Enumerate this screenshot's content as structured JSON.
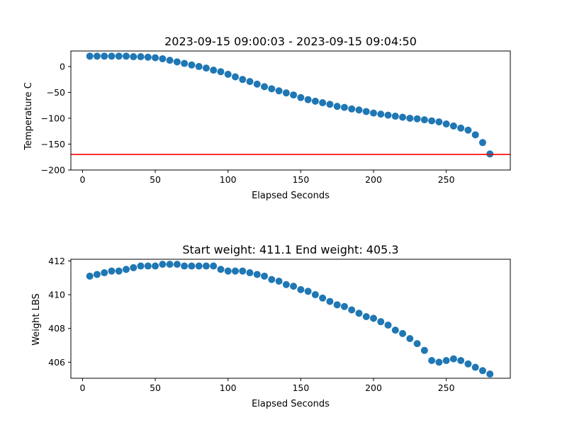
{
  "chart_data": [
    {
      "type": "scatter",
      "title": "2023-09-15 09:00:03 - 2023-09-15 09:04:50",
      "xlabel": "Elapsed Seconds",
      "ylabel": "Temperature C",
      "xlim": [
        -8,
        294
      ],
      "ylim": [
        -200,
        30
      ],
      "xticks": [
        0,
        50,
        100,
        150,
        200,
        250
      ],
      "yticks": [
        0,
        -50,
        -100,
        -150,
        -200
      ],
      "xtick_labels": [
        "0",
        "50",
        "100",
        "150",
        "200",
        "250"
      ],
      "ytick_labels": [
        "0",
        "−50",
        "−100",
        "−150",
        "−200"
      ],
      "grid": false,
      "marker_color": "#1f77b4",
      "reference_line": {
        "orientation": "horizontal",
        "y": -170,
        "color": "#ff0000"
      },
      "series": [
        {
          "x": [
            5,
            10,
            15,
            20,
            25,
            30,
            35,
            40,
            45,
            50,
            55,
            60,
            65,
            70,
            75,
            80,
            85,
            90,
            95,
            100,
            105,
            110,
            115,
            120,
            125,
            130,
            135,
            140,
            145,
            150,
            155,
            160,
            165,
            170,
            175,
            180,
            185,
            190,
            195,
            200,
            205,
            210,
            215,
            220,
            225,
            230,
            235,
            240,
            245,
            250,
            255,
            260,
            265,
            270,
            275,
            280
          ],
          "y": [
            20,
            20,
            20,
            20,
            20,
            20,
            19,
            19,
            18,
            17,
            15,
            12,
            9,
            6,
            3,
            0,
            -3,
            -7,
            -10,
            -15,
            -20,
            -25,
            -29,
            -34,
            -39,
            -43,
            -47,
            -51,
            -55,
            -60,
            -64,
            -67,
            -70,
            -73,
            -77,
            -79,
            -82,
            -84,
            -87,
            -90,
            -92,
            -94,
            -96,
            -98,
            -100,
            -101,
            -103,
            -105,
            -107,
            -111,
            -115,
            -119,
            -123,
            -132,
            -147,
            -169
          ]
        }
      ]
    },
    {
      "type": "scatter",
      "title": "Start weight: 411.1 End weight: 405.3",
      "xlabel": "Elapsed Seconds",
      "ylabel": "Weight LBS",
      "xlim": [
        -8,
        294
      ],
      "ylim": [
        405.05,
        412.1
      ],
      "xticks": [
        0,
        50,
        100,
        150,
        200,
        250
      ],
      "yticks": [
        406,
        408,
        410,
        412
      ],
      "xtick_labels": [
        "0",
        "50",
        "100",
        "150",
        "200",
        "250"
      ],
      "ytick_labels": [
        "406",
        "408",
        "410",
        "412"
      ],
      "grid": false,
      "marker_color": "#1f77b4",
      "series": [
        {
          "x": [
            5,
            10,
            15,
            20,
            25,
            30,
            35,
            40,
            45,
            50,
            55,
            60,
            65,
            70,
            75,
            80,
            85,
            90,
            95,
            100,
            105,
            110,
            115,
            120,
            125,
            130,
            135,
            140,
            145,
            150,
            155,
            160,
            165,
            170,
            175,
            180,
            185,
            190,
            195,
            200,
            205,
            210,
            215,
            220,
            225,
            230,
            235,
            240,
            245,
            250,
            255,
            260,
            265,
            270,
            275,
            280
          ],
          "y": [
            411.1,
            411.2,
            411.3,
            411.4,
            411.4,
            411.5,
            411.6,
            411.7,
            411.7,
            411.7,
            411.8,
            411.8,
            411.8,
            411.7,
            411.7,
            411.7,
            411.7,
            411.7,
            411.5,
            411.4,
            411.4,
            411.4,
            411.3,
            411.2,
            411.1,
            410.9,
            410.8,
            410.6,
            410.5,
            410.3,
            410.2,
            410.0,
            409.8,
            409.6,
            409.4,
            409.3,
            409.1,
            408.9,
            408.7,
            408.6,
            408.4,
            408.2,
            407.9,
            407.7,
            407.4,
            407.1,
            406.7,
            406.1,
            406.0,
            406.1,
            406.2,
            406.1,
            405.9,
            405.7,
            405.5,
            405.3
          ]
        }
      ]
    }
  ]
}
